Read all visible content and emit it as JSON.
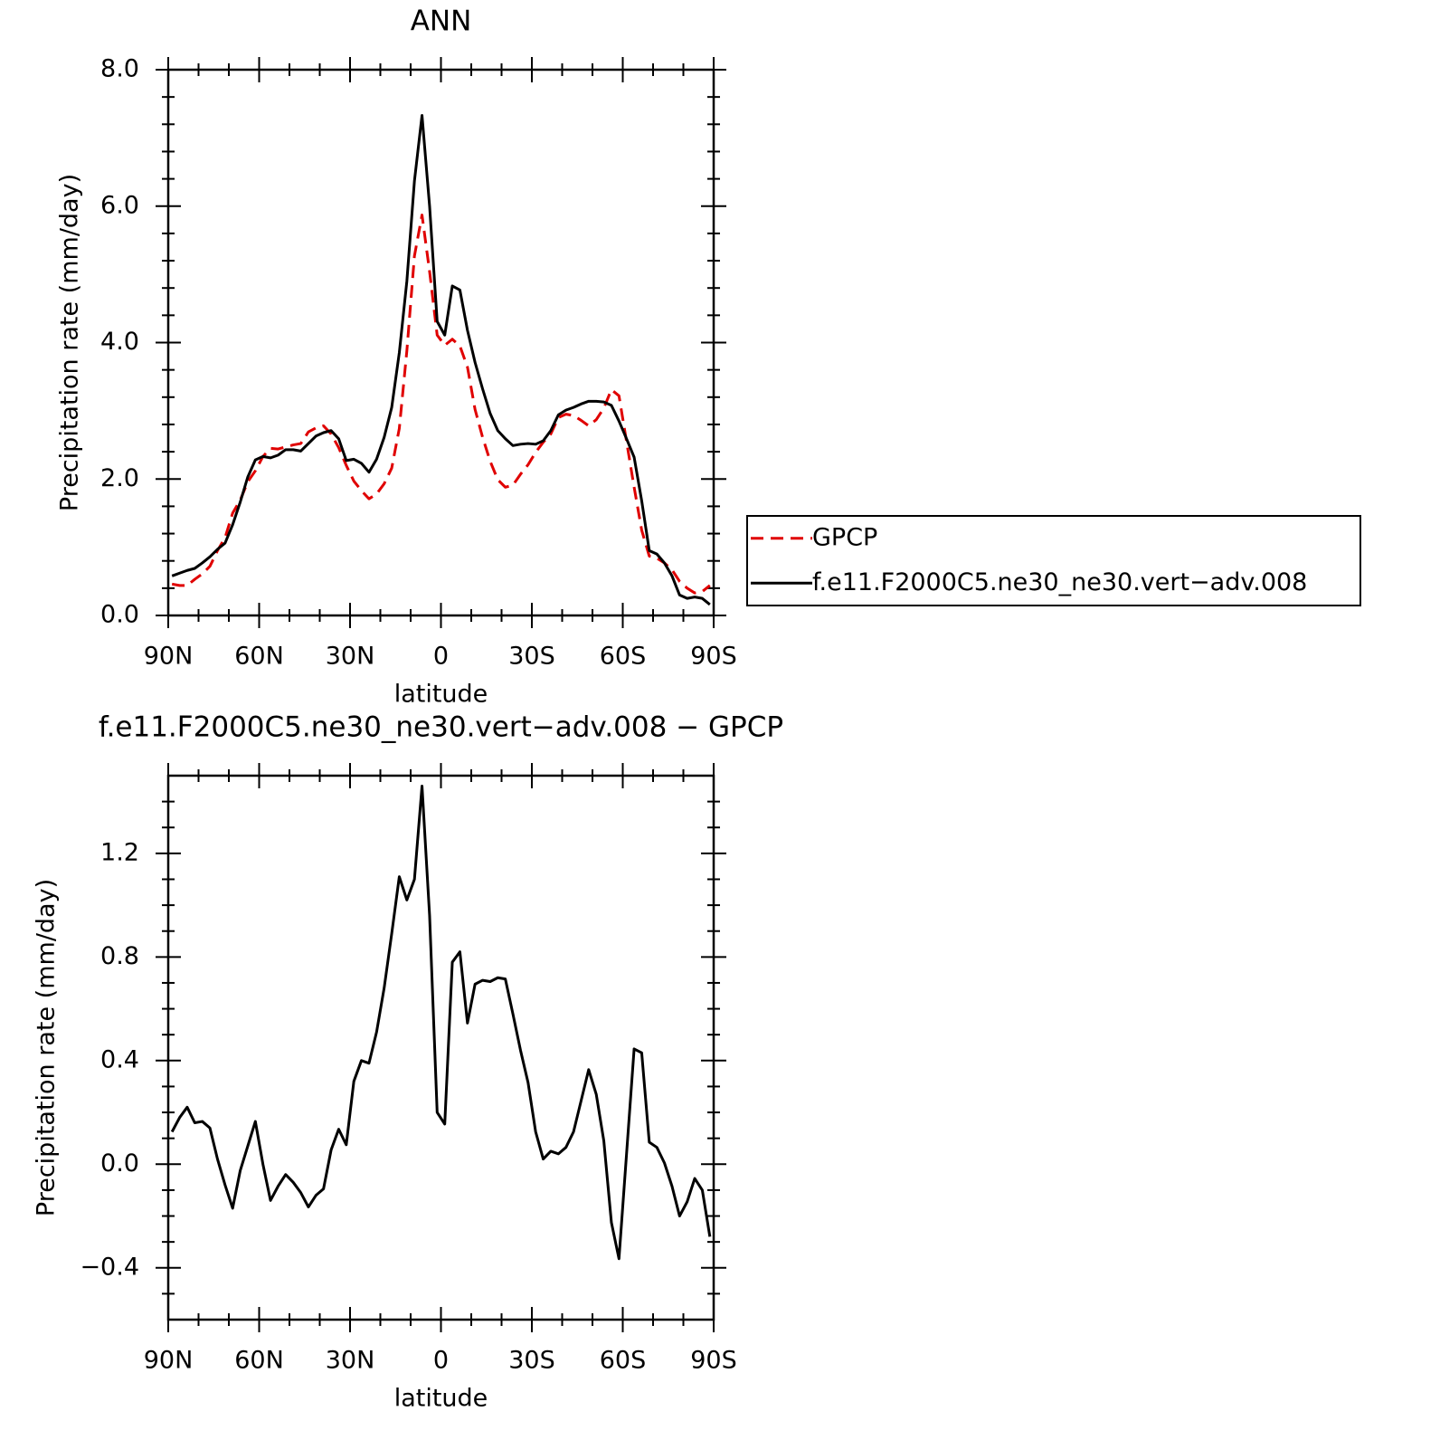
{
  "chart_data": [
    {
      "type": "line",
      "title": "ANN",
      "xlabel": "latitude",
      "ylabel": "Precipitation rate (mm/day)",
      "x": [
        88.75,
        86.25,
        83.75,
        81.25,
        78.75,
        76.25,
        73.75,
        71.25,
        68.75,
        66.25,
        63.75,
        61.25,
        58.75,
        56.25,
        53.75,
        51.25,
        48.75,
        46.25,
        43.75,
        41.25,
        38.75,
        36.25,
        33.75,
        31.25,
        28.75,
        26.25,
        23.75,
        21.25,
        18.75,
        16.25,
        13.75,
        11.25,
        8.75,
        6.25,
        3.75,
        1.25,
        -1.25,
        -3.75,
        -6.25,
        -8.75,
        -11.25,
        -13.75,
        -16.25,
        -18.75,
        -21.25,
        -23.75,
        -26.25,
        -28.75,
        -31.25,
        -33.75,
        -36.25,
        -38.75,
        -41.25,
        -43.75,
        -46.25,
        -48.75,
        -51.25,
        -53.75,
        -56.25,
        -58.75,
        -61.25,
        -63.75,
        -66.25,
        -68.75,
        -71.25,
        -73.75,
        -76.25,
        -78.75,
        -81.25,
        -83.75,
        -86.25,
        -88.75
      ],
      "series": [
        {
          "name": "GPCP",
          "color": "#e00000",
          "line_style": "dashed",
          "values": [
            0.46,
            0.44,
            0.44,
            0.53,
            0.61,
            0.72,
            0.95,
            1.14,
            1.5,
            1.69,
            1.96,
            2.12,
            2.33,
            2.45,
            2.44,
            2.47,
            2.5,
            2.52,
            2.69,
            2.75,
            2.78,
            2.66,
            2.46,
            2.2,
            1.97,
            1.83,
            1.71,
            1.78,
            1.93,
            2.16,
            2.74,
            3.88,
            5.27,
            5.87,
            5.04,
            4.11,
            3.96,
            4.05,
            3.95,
            3.64,
            3.02,
            2.61,
            2.26,
            1.99,
            1.88,
            1.91,
            2.07,
            2.21,
            2.39,
            2.54,
            2.66,
            2.9,
            2.95,
            2.93,
            2.86,
            2.78,
            2.87,
            3.04,
            3.31,
            3.22,
            2.55,
            1.88,
            1.25,
            0.87,
            0.84,
            0.77,
            0.67,
            0.5,
            0.4,
            0.33,
            0.35,
            0.44
          ]
        },
        {
          "name": "f.e11.F2000C5.ne30_ne30.vert−adv.008",
          "color": "#000000",
          "line_style": "solid",
          "values": [
            0.58,
            0.62,
            0.66,
            0.69,
            0.77,
            0.86,
            0.97,
            1.06,
            1.33,
            1.66,
            2.03,
            2.28,
            2.33,
            2.31,
            2.35,
            2.43,
            2.43,
            2.41,
            2.52,
            2.63,
            2.68,
            2.71,
            2.59,
            2.27,
            2.29,
            2.23,
            2.1,
            2.29,
            2.61,
            3.05,
            3.85,
            4.9,
            6.37,
            7.33,
            6.0,
            4.31,
            4.11,
            4.83,
            4.77,
            4.18,
            3.71,
            3.32,
            2.96,
            2.71,
            2.59,
            2.49,
            2.51,
            2.52,
            2.51,
            2.56,
            2.71,
            2.94,
            3.01,
            3.05,
            3.1,
            3.14,
            3.14,
            3.13,
            3.08,
            2.85,
            2.59,
            2.32,
            1.68,
            0.95,
            0.9,
            0.77,
            0.58,
            0.3,
            0.25,
            0.27,
            0.25,
            0.16
          ]
        }
      ],
      "xlim": [
        90,
        -90
      ],
      "xticks": [
        {
          "value": 90,
          "label": "90N"
        },
        {
          "value": 60,
          "label": "60N"
        },
        {
          "value": 30,
          "label": "30N"
        },
        0,
        {
          "value": -30,
          "label": "30S"
        },
        {
          "value": -60,
          "label": "60S"
        },
        {
          "value": -90,
          "label": "90S"
        }
      ],
      "xminorticks": [
        80,
        70,
        50,
        40,
        20,
        10,
        -10,
        -20,
        -40,
        -50,
        -70,
        -80
      ],
      "ylim": [
        0,
        8
      ],
      "yticks": [
        {
          "value": 0,
          "label": "0.0"
        },
        {
          "value": 2,
          "label": "2.0"
        },
        {
          "value": 4,
          "label": "4.0"
        },
        {
          "value": 6,
          "label": "6.0"
        },
        {
          "value": 8,
          "label": "8.0"
        }
      ],
      "yminorticks": [
        0.4,
        0.8,
        1.2,
        1.6,
        2.4,
        2.8,
        3.2,
        3.6,
        4.4,
        4.8,
        5.2,
        5.6,
        6.4,
        6.8,
        7.2,
        7.6
      ],
      "legend": "right"
    },
    {
      "type": "line",
      "title": "f.e11.F2000C5.ne30_ne30.vert−adv.008 − GPCP",
      "xlabel": "latitude",
      "ylabel": "Precipitation rate (mm/day)",
      "x": [
        88.75,
        86.25,
        83.75,
        81.25,
        78.75,
        76.25,
        73.75,
        71.25,
        68.75,
        66.25,
        63.75,
        61.25,
        58.75,
        56.25,
        53.75,
        51.25,
        48.75,
        46.25,
        43.75,
        41.25,
        38.75,
        36.25,
        33.75,
        31.25,
        28.75,
        26.25,
        23.75,
        21.25,
        18.75,
        16.25,
        13.75,
        11.25,
        8.75,
        6.25,
        3.75,
        1.25,
        -1.25,
        -3.75,
        -6.25,
        -8.75,
        -11.25,
        -13.75,
        -16.25,
        -18.75,
        -21.25,
        -23.75,
        -26.25,
        -28.75,
        -31.25,
        -33.75,
        -36.25,
        -38.75,
        -41.25,
        -43.75,
        -46.25,
        -48.75,
        -51.25,
        -53.75,
        -56.25,
        -58.75,
        -61.25,
        -63.75,
        -66.25,
        -68.75,
        -71.25,
        -73.75,
        -76.25,
        -78.75,
        -81.25,
        -83.75,
        -86.25,
        -88.75
      ],
      "color": "#000000",
      "values": [
        0.125,
        0.18,
        0.22,
        0.16,
        0.165,
        0.14,
        0.02,
        -0.08,
        -0.17,
        -0.025,
        0.07,
        0.165,
        0.0,
        -0.14,
        -0.085,
        -0.04,
        -0.07,
        -0.11,
        -0.165,
        -0.12,
        -0.095,
        0.055,
        0.135,
        0.075,
        0.32,
        0.4,
        0.39,
        0.51,
        0.68,
        0.89,
        1.11,
        1.02,
        1.1,
        1.46,
        0.96,
        0.2,
        0.155,
        0.78,
        0.82,
        0.545,
        0.695,
        0.71,
        0.705,
        0.72,
        0.715,
        0.58,
        0.44,
        0.315,
        0.125,
        0.02,
        0.05,
        0.04,
        0.065,
        0.125,
        0.245,
        0.365,
        0.27,
        0.09,
        -0.225,
        -0.365,
        0.04,
        0.445,
        0.43,
        0.085,
        0.065,
        0.005,
        -0.085,
        -0.2,
        -0.145,
        -0.055,
        -0.1,
        -0.28
      ],
      "xlim": [
        90,
        -90
      ],
      "xticks": [
        {
          "value": 90,
          "label": "90N"
        },
        {
          "value": 60,
          "label": "60N"
        },
        {
          "value": 30,
          "label": "30N"
        },
        0,
        {
          "value": -30,
          "label": "30S"
        },
        {
          "value": -60,
          "label": "60S"
        },
        {
          "value": -90,
          "label": "90S"
        }
      ],
      "xminorticks": [
        80,
        70,
        50,
        40,
        20,
        10,
        -10,
        -20,
        -40,
        -50,
        -70,
        -80
      ],
      "ylim": [
        -0.6,
        1.5
      ],
      "yticks": [
        {
          "value": -0.4,
          "label": "−0.4"
        },
        {
          "value": 0,
          "label": "0.0"
        },
        0.4,
        0.8,
        1.2
      ],
      "yminorticks": [
        -0.5,
        -0.3,
        -0.2,
        -0.1,
        0.1,
        0.2,
        0.3,
        0.5,
        0.6,
        0.7,
        0.9,
        1.0,
        1.1,
        1.3,
        1.4
      ]
    }
  ]
}
